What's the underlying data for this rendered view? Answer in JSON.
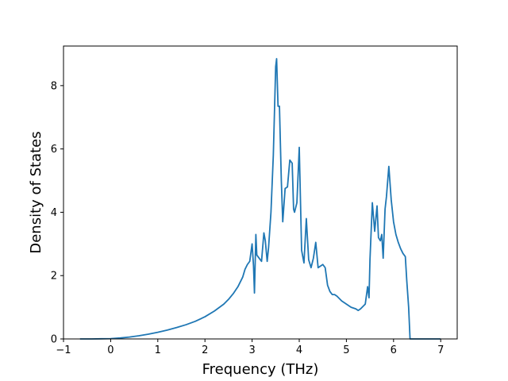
{
  "chart_data": {
    "type": "line",
    "title": "",
    "xlabel": "Frequency (THz)",
    "ylabel": "Density of States",
    "xlim": [
      -1.0,
      7.35
    ],
    "ylim": [
      0,
      9.25
    ],
    "xticks": [
      -1,
      0,
      1,
      2,
      3,
      4,
      5,
      6,
      7
    ],
    "yticks": [
      0,
      2,
      4,
      6,
      8
    ],
    "grid": false,
    "line_color": "#1f77b4",
    "series": [
      {
        "x": [
          -0.65,
          -0.4,
          -0.2,
          0.0,
          0.2,
          0.4,
          0.6,
          0.8,
          1.0,
          1.2,
          1.4,
          1.6,
          1.8,
          2.0,
          2.2,
          2.4,
          2.5,
          2.6,
          2.7,
          2.8,
          2.85,
          2.9,
          2.95,
          3.0,
          3.03,
          3.05,
          3.08,
          3.1,
          3.15,
          3.2,
          3.25,
          3.28,
          3.32,
          3.35,
          3.4,
          3.45,
          3.5,
          3.52,
          3.55,
          3.58,
          3.62,
          3.65,
          3.7,
          3.75,
          3.8,
          3.85,
          3.88,
          3.9,
          3.95,
          4.0,
          4.05,
          4.1,
          4.15,
          4.2,
          4.25,
          4.3,
          4.35,
          4.4,
          4.45,
          4.5,
          4.55,
          4.6,
          4.65,
          4.7,
          4.75,
          4.8,
          4.9,
          5.0,
          5.1,
          5.2,
          5.25,
          5.3,
          5.4,
          5.45,
          5.48,
          5.5,
          5.55,
          5.6,
          5.65,
          5.68,
          5.72,
          5.75,
          5.78,
          5.82,
          5.85,
          5.9,
          5.95,
          6.0,
          6.05,
          6.1,
          6.15,
          6.2,
          6.25,
          6.28,
          6.32,
          6.35,
          6.4,
          6.6,
          7.0
        ],
        "values": [
          0.0,
          0.0,
          0.005,
          0.01,
          0.03,
          0.06,
          0.1,
          0.15,
          0.21,
          0.28,
          0.36,
          0.45,
          0.56,
          0.7,
          0.88,
          1.1,
          1.25,
          1.43,
          1.65,
          1.95,
          2.2,
          2.35,
          2.45,
          3.0,
          2.3,
          1.45,
          3.3,
          2.65,
          2.55,
          2.45,
          3.35,
          3.1,
          2.45,
          2.9,
          4.0,
          5.8,
          8.6,
          8.85,
          7.35,
          7.35,
          5.0,
          3.7,
          4.75,
          4.8,
          5.65,
          5.55,
          4.1,
          4.0,
          4.3,
          6.05,
          2.8,
          2.4,
          3.8,
          2.5,
          2.25,
          2.55,
          3.05,
          2.25,
          2.3,
          2.35,
          2.25,
          1.7,
          1.5,
          1.4,
          1.4,
          1.35,
          1.2,
          1.1,
          1.0,
          0.95,
          0.9,
          0.95,
          1.1,
          1.65,
          1.3,
          2.5,
          4.3,
          3.4,
          4.2,
          3.2,
          3.1,
          3.3,
          2.55,
          4.1,
          4.5,
          5.45,
          4.4,
          3.7,
          3.3,
          3.05,
          2.85,
          2.7,
          2.6,
          1.85,
          1.0,
          0.0,
          0.0,
          0.0,
          0.0
        ]
      }
    ]
  }
}
